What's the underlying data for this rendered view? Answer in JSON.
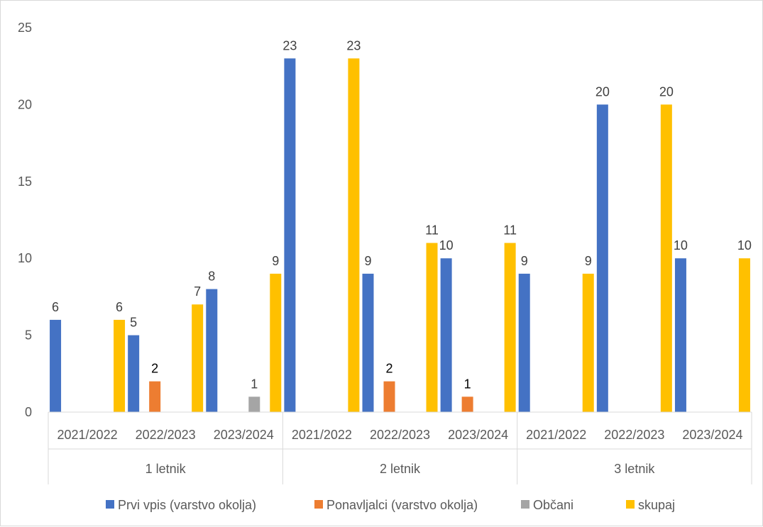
{
  "chart_data": {
    "type": "bar",
    "title": "",
    "xlabel": "",
    "ylabel": "",
    "ylim": [
      0,
      25
    ],
    "yticks": [
      "0",
      "5",
      "10",
      "15",
      "20",
      "25"
    ],
    "grid": false,
    "legend_position": "bottom",
    "groups": [
      {
        "name": "1 letnik",
        "categories": [
          "2021/2022",
          "2022/2023",
          "2023/2024"
        ]
      },
      {
        "name": "2 letnik",
        "categories": [
          "2021/2022",
          "2022/2023",
          "2023/2024"
        ]
      },
      {
        "name": "3 letnik",
        "categories": [
          "2021/2022",
          "2022/2023",
          "2023/2024"
        ]
      }
    ],
    "series": [
      {
        "name": "Prvi vpis (varstvo okolja)",
        "color": "#4472C4",
        "values": [
          6,
          5,
          8,
          23,
          9,
          10,
          9,
          20,
          10
        ]
      },
      {
        "name": "Ponavljalci (varstvo okolja)",
        "color": "#ED7D31",
        "values": [
          null,
          2,
          null,
          null,
          2,
          1,
          null,
          null,
          null
        ]
      },
      {
        "name": "Občani",
        "color": "#A5A5A5",
        "values": [
          null,
          null,
          1,
          null,
          null,
          null,
          null,
          null,
          null
        ]
      },
      {
        "name": "skupaj",
        "color": "#FFC000",
        "values": [
          6,
          7,
          9,
          23,
          11,
          11,
          9,
          20,
          10
        ]
      }
    ]
  }
}
